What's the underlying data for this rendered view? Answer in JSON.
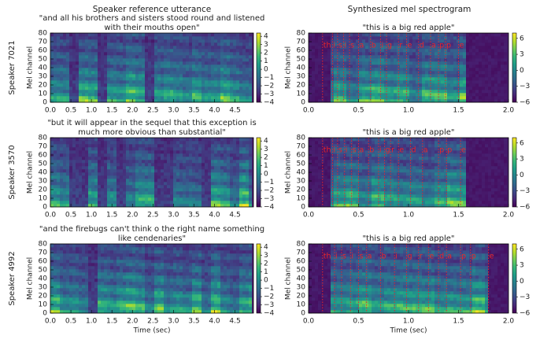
{
  "column_titles": [
    "Speaker reference utterance",
    "Synthesized mel spectrogram"
  ],
  "chart_data": [
    {
      "type": "heatmap",
      "row_label": "Speaker 7021",
      "title": [
        "\"and all his brothers and sisters stood round and listened",
        "with their mouths open\""
      ],
      "ylabel": "Mel channel",
      "xlim": [
        0,
        4.95
      ],
      "xticks": [
        {
          "value": 0,
          "label": "0.0"
        },
        0.5,
        {
          "value": 1,
          "label": "1.0"
        },
        1.5,
        {
          "value": 2,
          "label": "2.0"
        },
        2.5,
        {
          "value": 3,
          "label": "3.0"
        },
        3.5,
        {
          "value": 4,
          "label": "4.0"
        },
        4.5
      ],
      "ylim": [
        0,
        80
      ],
      "yticks": [
        0,
        10,
        20,
        30,
        40,
        50,
        60,
        70,
        80
      ],
      "colorbar": {
        "lim": [
          -4,
          4.4
        ],
        "ticks": [
          4,
          3,
          2,
          1,
          0,
          {
            "value": -1,
            "label": "−1"
          },
          {
            "value": -2,
            "label": "−2"
          },
          {
            "value": -3,
            "label": "−3"
          },
          {
            "value": -4,
            "label": "−4"
          }
        ]
      }
    },
    {
      "type": "heatmap",
      "title": [
        "\"this is a big red apple\""
      ],
      "ylabel": "Mel channel",
      "xlim": [
        0,
        2
      ],
      "xticks": [
        {
          "value": 0,
          "label": "0.0"
        },
        0.5,
        {
          "value": 1,
          "label": "1.0"
        },
        1.5,
        {
          "value": 2,
          "label": "2.0"
        }
      ],
      "ylim": [
        0,
        80
      ],
      "yticks": [
        0,
        10,
        20,
        30,
        40,
        50,
        60,
        70,
        80
      ],
      "colorbar": {
        "lim": [
          -6,
          7
        ],
        "ticks": [
          6,
          3,
          0,
          {
            "value": -3,
            "label": "−3"
          },
          {
            "value": -6,
            "label": "−6"
          }
        ]
      },
      "annotations": [
        {
          "x": 0.14,
          "label": "th"
        },
        {
          "x": 0.24,
          "label": "i"
        },
        {
          "x": 0.29,
          "label": "s"
        },
        {
          "x": 0.35,
          "label": "i"
        },
        {
          "x": 0.41,
          "label": "s"
        },
        {
          "x": 0.5,
          "label": "a"
        },
        {
          "x": 0.62,
          "label": "b"
        },
        {
          "x": 0.72,
          "label": "i"
        },
        {
          "x": 0.78,
          "label": "g"
        },
        {
          "x": 0.9,
          "label": "r"
        },
        {
          "x": 0.98,
          "label": "e"
        },
        {
          "x": 1.1,
          "label": "d"
        },
        {
          "x": 1.22,
          "label": "a"
        },
        {
          "x": 1.3,
          "label": "p"
        },
        {
          "x": 1.37,
          "label": "p"
        },
        {
          "x": 1.5,
          "label": "e"
        }
      ]
    },
    {
      "type": "heatmap",
      "row_label": "Speaker 3570",
      "title": [
        "\"but it will appear in the sequel that this exception is",
        "much more obvious than substantial\""
      ],
      "ylabel": "Mel channel",
      "xlim": [
        0,
        4.95
      ],
      "xticks": [
        {
          "value": 0,
          "label": "0.0"
        },
        0.5,
        {
          "value": 1,
          "label": "1.0"
        },
        1.5,
        {
          "value": 2,
          "label": "2.0"
        },
        2.5,
        {
          "value": 3,
          "label": "3.0"
        },
        3.5,
        {
          "value": 4,
          "label": "4.0"
        },
        4.5
      ],
      "ylim": [
        0,
        80
      ],
      "yticks": [
        0,
        10,
        20,
        30,
        40,
        50,
        60,
        70,
        80
      ],
      "colorbar": {
        "lim": [
          -4,
          4.4
        ],
        "ticks": [
          4,
          3,
          2,
          1,
          0,
          {
            "value": -1,
            "label": "−1"
          },
          {
            "value": -2,
            "label": "−2"
          },
          {
            "value": -3,
            "label": "−3"
          },
          {
            "value": -4,
            "label": "−4"
          }
        ]
      }
    },
    {
      "type": "heatmap",
      "title": [
        "\"this is a big red apple\""
      ],
      "ylabel": "Mel channel",
      "xlim": [
        0,
        2
      ],
      "xticks": [
        {
          "value": 0,
          "label": "0.0"
        },
        0.5,
        {
          "value": 1,
          "label": "1.0"
        },
        1.5,
        {
          "value": 2,
          "label": "2.0"
        }
      ],
      "ylim": [
        0,
        80
      ],
      "yticks": [
        0,
        10,
        20,
        30,
        40,
        50,
        60,
        70,
        80
      ],
      "colorbar": {
        "lim": [
          -6,
          7
        ],
        "ticks": [
          6,
          3,
          0,
          {
            "value": -3,
            "label": "−3"
          },
          {
            "value": -6,
            "label": "−6"
          }
        ]
      },
      "annotations": [
        {
          "x": 0.14,
          "label": "th"
        },
        {
          "x": 0.24,
          "label": "i"
        },
        {
          "x": 0.29,
          "label": "s"
        },
        {
          "x": 0.36,
          "label": "i"
        },
        {
          "x": 0.43,
          "label": "s"
        },
        {
          "x": 0.5,
          "label": "a"
        },
        {
          "x": 0.6,
          "label": "b"
        },
        {
          "x": 0.7,
          "label": "i"
        },
        {
          "x": 0.76,
          "label": "g"
        },
        {
          "x": 0.82,
          "label": "r"
        },
        {
          "x": 0.9,
          "label": "e"
        },
        {
          "x": 1.02,
          "label": "d"
        },
        {
          "x": 1.14,
          "label": "a"
        },
        {
          "x": 1.3,
          "label": "p"
        },
        {
          "x": 1.38,
          "label": "p"
        },
        {
          "x": 1.52,
          "label": "e"
        }
      ]
    },
    {
      "type": "heatmap",
      "row_label": "Speaker 4992",
      "title": [
        "\"and the firebugs can't think o the right name something",
        "like cendenaries\""
      ],
      "ylabel": "Mel channel",
      "xlabel": "Time (sec)",
      "xlim": [
        0,
        4.95
      ],
      "xticks": [
        {
          "value": 0,
          "label": "0.0"
        },
        0.5,
        {
          "value": 1,
          "label": "1.0"
        },
        1.5,
        {
          "value": 2,
          "label": "2.0"
        },
        2.5,
        {
          "value": 3,
          "label": "3.0"
        },
        3.5,
        {
          "value": 4,
          "label": "4.0"
        },
        4.5
      ],
      "ylim": [
        0,
        80
      ],
      "yticks": [
        0,
        10,
        20,
        30,
        40,
        50,
        60,
        70,
        80
      ],
      "colorbar": {
        "lim": [
          -4,
          4.4
        ],
        "ticks": [
          4,
          3,
          2,
          1,
          0,
          {
            "value": -1,
            "label": "−1"
          },
          {
            "value": -2,
            "label": "−2"
          },
          {
            "value": -3,
            "label": "−3"
          },
          {
            "value": -4,
            "label": "−4"
          }
        ]
      }
    },
    {
      "type": "heatmap",
      "title": [
        "\"this is a big red apple\""
      ],
      "ylabel": "Mel channel",
      "xlabel": "Time (sec)",
      "xlim": [
        0,
        2
      ],
      "xticks": [
        {
          "value": 0,
          "label": "0.0"
        },
        0.5,
        {
          "value": 1,
          "label": "1.0"
        },
        1.5,
        {
          "value": 2,
          "label": "2.0"
        }
      ],
      "ylim": [
        0,
        80
      ],
      "yticks": [
        0,
        10,
        20,
        30,
        40,
        50,
        60,
        70,
        80
      ],
      "colorbar": {
        "lim": [
          -6,
          7
        ],
        "ticks": [
          6,
          3,
          0,
          {
            "value": -3,
            "label": "−3"
          },
          {
            "value": -6,
            "label": "−6"
          }
        ]
      },
      "annotations": [
        {
          "x": 0.14,
          "label": "th"
        },
        {
          "x": 0.26,
          "label": "i"
        },
        {
          "x": 0.33,
          "label": "s"
        },
        {
          "x": 0.42,
          "label": "i"
        },
        {
          "x": 0.5,
          "label": "s"
        },
        {
          "x": 0.58,
          "label": "a"
        },
        {
          "x": 0.72,
          "label": "b"
        },
        {
          "x": 0.86,
          "label": "i"
        },
        {
          "x": 0.98,
          "label": "g"
        },
        {
          "x": 1.1,
          "label": "r"
        },
        {
          "x": 1.2,
          "label": "e"
        },
        {
          "x": 1.3,
          "label": "d"
        },
        {
          "x": 1.38,
          "label": "a"
        },
        {
          "x": 1.52,
          "label": "p"
        },
        {
          "x": 1.62,
          "label": "p"
        },
        {
          "x": 1.8,
          "label": "e"
        }
      ]
    }
  ]
}
